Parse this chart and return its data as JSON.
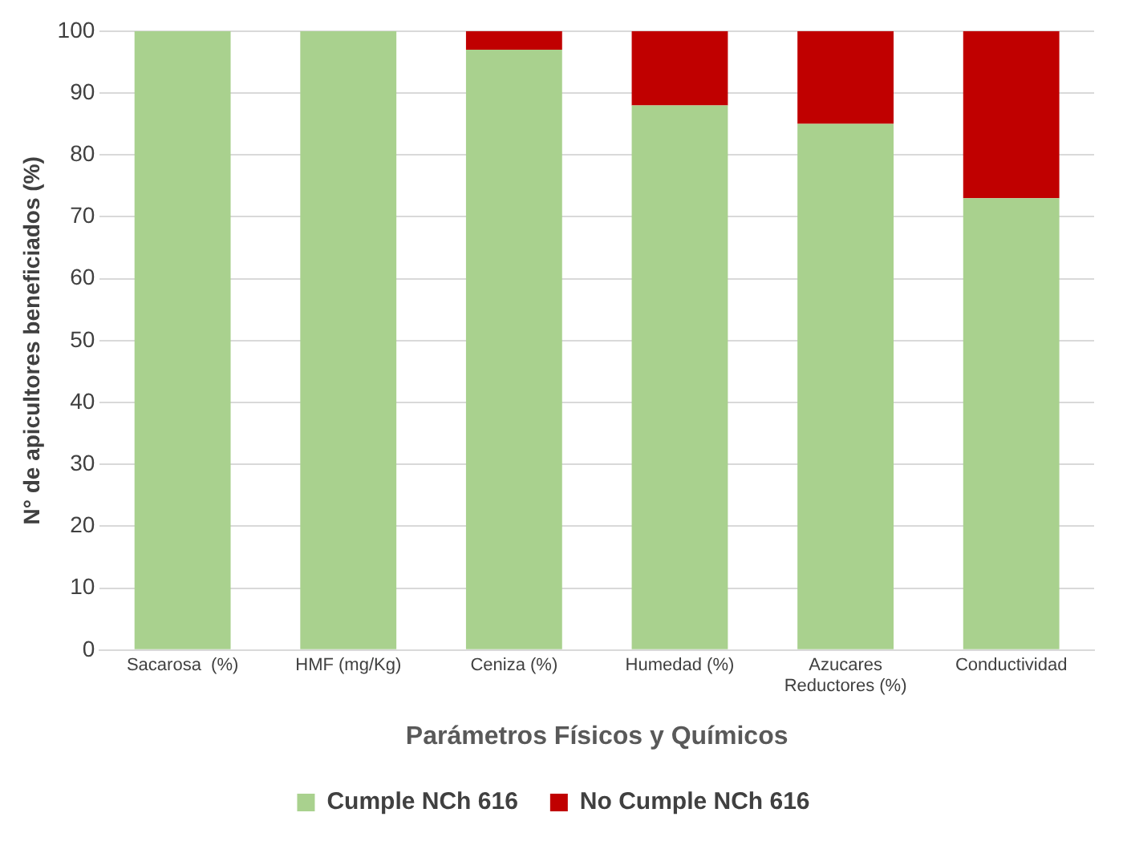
{
  "chart_data": {
    "type": "bar",
    "stacked": true,
    "xlabel": "Parámetros Físicos y Químicos",
    "ylabel": "N° de apicultores beneficiados (%)",
    "categories": [
      "Sacarosa  (%)",
      "HMF (mg/Kg)",
      "Ceniza (%)",
      "Humedad (%)",
      "Azucares Reductores (%)",
      "Conductividad"
    ],
    "series": [
      {
        "name": "Cumple NCh 616",
        "color": "#a9d18e",
        "values": [
          100,
          100,
          97,
          88,
          85,
          73
        ]
      },
      {
        "name": "No Cumple NCh 616",
        "color": "#c00000",
        "values": [
          0,
          0,
          3,
          12,
          15,
          27
        ]
      }
    ],
    "ylim": [
      0,
      100
    ],
    "yticks": [
      0,
      10,
      20,
      30,
      40,
      50,
      60,
      70,
      80,
      90,
      100
    ],
    "grid": "y",
    "legend": "bottom"
  }
}
